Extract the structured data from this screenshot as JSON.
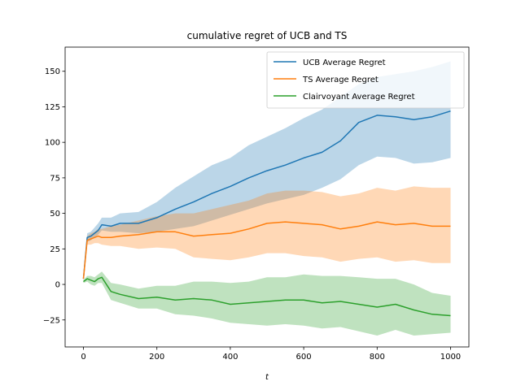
{
  "chart_data": {
    "type": "line",
    "title": "cumulative regret of UCB and TS",
    "xlabel": "t",
    "ylabel": "",
    "xlim": [
      -50,
      1050
    ],
    "ylim": [
      -44,
      167
    ],
    "xticks": [
      0,
      200,
      400,
      600,
      800,
      1000
    ],
    "yticks": [
      -25,
      0,
      25,
      50,
      75,
      100,
      125,
      150
    ],
    "legend_position": "top-right",
    "grid": false,
    "series": [
      {
        "name": "UCB Average Regret",
        "color": "#1f77b4",
        "band_color": "#1f77b4",
        "x": [
          0,
          10,
          20,
          30,
          40,
          50,
          75,
          100,
          150,
          200,
          250,
          300,
          350,
          400,
          450,
          500,
          550,
          600,
          650,
          700,
          750,
          800,
          850,
          900,
          950,
          1000
        ],
        "mean": [
          4,
          33,
          34,
          36,
          38,
          42,
          41,
          43,
          43,
          47,
          53,
          58,
          64,
          69,
          75,
          80,
          84,
          89,
          93,
          101,
          114,
          119,
          118,
          116,
          118,
          122
        ],
        "upper": [
          6,
          36,
          37,
          40,
          43,
          47,
          47,
          50,
          51,
          58,
          68,
          76,
          84,
          89,
          98,
          104,
          110,
          117,
          123,
          132,
          141,
          146,
          148,
          150,
          153,
          157
        ],
        "lower": [
          2,
          30,
          31,
          33,
          35,
          38,
          37,
          37,
          36,
          37,
          39,
          41,
          45,
          49,
          53,
          57,
          60,
          63,
          68,
          74,
          84,
          90,
          89,
          85,
          86,
          89
        ]
      },
      {
        "name": "TS Average Regret",
        "color": "#ff7f0e",
        "band_color": "#ff7f0e",
        "x": [
          0,
          10,
          20,
          30,
          40,
          50,
          75,
          100,
          150,
          200,
          250,
          300,
          350,
          400,
          450,
          500,
          550,
          600,
          650,
          700,
          750,
          800,
          850,
          900,
          950,
          1000
        ],
        "mean": [
          4,
          31,
          32,
          33,
          34,
          33,
          33,
          34,
          35,
          37,
          37,
          34,
          35,
          36,
          39,
          43,
          44,
          43,
          42,
          39,
          41,
          44,
          42,
          43,
          41,
          41
        ],
        "upper": [
          6,
          34,
          36,
          37,
          39,
          39,
          41,
          42,
          45,
          48,
          50,
          50,
          53,
          56,
          59,
          64,
          66,
          66,
          65,
          62,
          64,
          68,
          66,
          69,
          68,
          68
        ],
        "lower": [
          2,
          28,
          28,
          29,
          29,
          28,
          27,
          27,
          25,
          26,
          25,
          19,
          18,
          17,
          19,
          22,
          22,
          20,
          19,
          16,
          18,
          19,
          16,
          17,
          15,
          15
        ]
      },
      {
        "name": "Clairvoyant Average Regret",
        "color": "#2ca02c",
        "band_color": "#2ca02c",
        "x": [
          0,
          10,
          20,
          30,
          40,
          50,
          75,
          100,
          150,
          200,
          250,
          300,
          350,
          400,
          450,
          500,
          550,
          600,
          650,
          700,
          750,
          800,
          850,
          900,
          950,
          1000
        ],
        "mean": [
          2,
          4,
          3,
          2,
          4,
          5,
          -5,
          -7,
          -10,
          -9,
          -11,
          -10,
          -11,
          -14,
          -13,
          -12,
          -11,
          -11,
          -13,
          -12,
          -14,
          -16,
          -14,
          -18,
          -21,
          -22
        ],
        "upper": [
          3,
          6,
          6,
          5,
          7,
          9,
          1,
          0,
          -3,
          -1,
          -1,
          2,
          2,
          1,
          2,
          5,
          5,
          7,
          6,
          6,
          5,
          4,
          4,
          0,
          -6,
          -8
        ],
        "lower": [
          1,
          2,
          0,
          -1,
          1,
          1,
          -11,
          -13,
          -17,
          -17,
          -21,
          -22,
          -24,
          -27,
          -28,
          -29,
          -28,
          -29,
          -31,
          -30,
          -33,
          -36,
          -32,
          -36,
          -35,
          -34
        ]
      }
    ]
  }
}
